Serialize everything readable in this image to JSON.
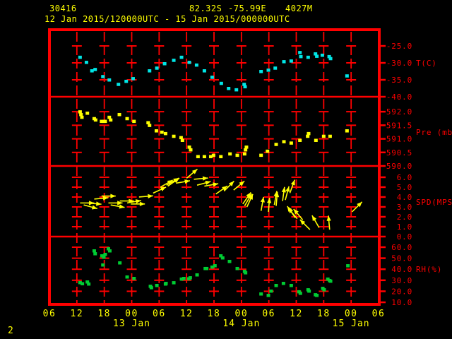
{
  "header": {
    "station_id": "30416",
    "latitude": "82.32S",
    "longitude": "-75.99E",
    "elevation": "4027M",
    "period": "12 Jan 2015/120000UTC - 15 Jan 2015/000000UTC"
  },
  "page_number": "2",
  "colors": {
    "background": "#000000",
    "frame": "#ff0000",
    "grid": "#ff0000",
    "axis_text": "#ff0000",
    "title_text": "#ffff00",
    "time_text": "#ffff00",
    "temperature": "#00e6e6",
    "pressure": "#ffff00",
    "wind": "#ffff00",
    "humidity": "#00cc33"
  },
  "x_axis": {
    "hours_span": 72,
    "tick_interval_hours": 6,
    "hour_labels": [
      "06",
      "12",
      "18",
      "00",
      "06",
      "12",
      "18",
      "00",
      "06",
      "12",
      "18",
      "00",
      "06"
    ],
    "date_labels": [
      {
        "label": "13 Jan",
        "hour": 18
      },
      {
        "label": "14 Jan",
        "hour": 42
      },
      {
        "label": "15 Jan",
        "hour": 66
      }
    ]
  },
  "chart_data": [
    {
      "type": "scatter",
      "name": "temperature",
      "axis_label": "T(C)",
      "axis_label_at": -30,
      "color": "#00e6e6",
      "ylim": [
        -40.0,
        -20.2
      ],
      "yticks": [
        {
          "value": -25.0,
          "label": "-25.0"
        },
        {
          "value": -30.0,
          "label": "-30.0"
        },
        {
          "value": -35.0,
          "label": "-35.0"
        },
        {
          "value": -40.0,
          "label": "-40.0"
        }
      ],
      "points": [
        [
          6.7,
          -28.3
        ],
        [
          8.1,
          -29.8
        ],
        [
          9.3,
          -32.3
        ],
        [
          10.0,
          -31.9
        ],
        [
          11.7,
          -34.0
        ],
        [
          13.1,
          -35.0
        ],
        [
          15.1,
          -36.3
        ],
        [
          16.8,
          -35.4
        ],
        [
          18.3,
          -34.6
        ],
        [
          21.9,
          -32.3
        ],
        [
          23.5,
          -31.5
        ],
        [
          25.2,
          -30.2
        ],
        [
          27.2,
          -29.2
        ],
        [
          28.9,
          -28.3
        ],
        [
          30.6,
          -29.8
        ],
        [
          32.2,
          -30.6
        ],
        [
          33.9,
          -32.3
        ],
        [
          35.6,
          -34.2
        ],
        [
          37.6,
          -36.0
        ],
        [
          39.2,
          -37.5
        ],
        [
          40.9,
          -37.9
        ],
        [
          42.6,
          -36.3
        ],
        [
          42.8,
          -37.0
        ],
        [
          46.3,
          -32.5
        ],
        [
          47.9,
          -32.1
        ],
        [
          49.4,
          -31.5
        ],
        [
          51.3,
          -29.6
        ],
        [
          52.9,
          -29.4
        ],
        [
          54.8,
          -26.9
        ],
        [
          55.0,
          -28.1
        ],
        [
          56.6,
          -28.3
        ],
        [
          58.2,
          -27.3
        ],
        [
          58.5,
          -28.0
        ],
        [
          59.7,
          -27.7
        ],
        [
          61.2,
          -28.1
        ],
        [
          61.5,
          -28.7
        ],
        [
          65.1,
          -33.8
        ]
      ]
    },
    {
      "type": "scatter",
      "name": "pressure",
      "axis_label": "Pre (mb)",
      "axis_label_at": 591.25,
      "color": "#ffff00",
      "ylim": [
        590.0,
        592.55
      ],
      "yticks": [
        {
          "value": 592.0,
          "label": "592.0"
        },
        {
          "value": 591.5,
          "label": "591.5"
        },
        {
          "value": 591.0,
          "label": "591.0"
        },
        {
          "value": 590.5,
          "label": "590.5"
        },
        {
          "value": 590.0,
          "label": "590.0"
        }
      ],
      "points": [
        [
          6.7,
          592.0
        ],
        [
          6.9,
          591.9
        ],
        [
          7.1,
          591.8
        ],
        [
          8.3,
          591.95
        ],
        [
          9.8,
          591.75
        ],
        [
          10.1,
          591.7
        ],
        [
          11.4,
          591.65
        ],
        [
          11.9,
          591.65
        ],
        [
          12.2,
          591.65
        ],
        [
          13.1,
          591.8
        ],
        [
          13.4,
          591.7
        ],
        [
          15.3,
          591.9
        ],
        [
          17.0,
          591.75
        ],
        [
          18.5,
          591.65
        ],
        [
          21.6,
          591.6
        ],
        [
          21.9,
          591.5
        ],
        [
          23.4,
          591.3
        ],
        [
          24.6,
          591.25
        ],
        [
          25.4,
          591.2
        ],
        [
          27.2,
          591.1
        ],
        [
          28.8,
          591.05
        ],
        [
          29.1,
          590.95
        ],
        [
          30.6,
          590.7
        ],
        [
          30.9,
          590.6
        ],
        [
          32.5,
          590.35
        ],
        [
          33.9,
          590.35
        ],
        [
          35.3,
          590.35
        ],
        [
          35.9,
          590.4
        ],
        [
          37.5,
          590.35
        ],
        [
          39.5,
          590.45
        ],
        [
          41.1,
          590.4
        ],
        [
          42.7,
          590.45
        ],
        [
          42.9,
          590.6
        ],
        [
          43.1,
          590.7
        ],
        [
          46.3,
          590.4
        ],
        [
          47.7,
          590.55
        ],
        [
          49.6,
          590.8
        ],
        [
          51.3,
          590.9
        ],
        [
          52.9,
          590.85
        ],
        [
          54.8,
          590.95
        ],
        [
          56.5,
          591.1
        ],
        [
          56.7,
          591.2
        ],
        [
          58.3,
          590.95
        ],
        [
          60.0,
          591.1
        ],
        [
          61.4,
          591.1
        ],
        [
          65.1,
          591.3
        ]
      ]
    },
    {
      "type": "wind_vector",
      "name": "wind_speed",
      "axis_label": "SPD(MPS)",
      "axis_label_at": 3.5,
      "color": "#ffff00",
      "ylim": [
        0.0,
        7.14
      ],
      "yticks": [
        {
          "value": 6.0,
          "label": "6.0"
        },
        {
          "value": 5.0,
          "label": "5.0"
        },
        {
          "value": 4.0,
          "label": "4.0"
        },
        {
          "value": 3.0,
          "label": "3.0"
        },
        {
          "value": 2.0,
          "label": "2.0"
        },
        {
          "value": 1.0,
          "label": "1.0"
        },
        {
          "value": 0.0,
          "label": "0.0"
        }
      ],
      "points": [
        [
          6.7,
          3.4,
          0
        ],
        [
          7.5,
          3.2,
          -15
        ],
        [
          8.3,
          3.4,
          -5
        ],
        [
          9.8,
          3.8,
          5
        ],
        [
          11.4,
          4.1,
          0
        ],
        [
          12.9,
          3.4,
          0
        ],
        [
          13.4,
          3.2,
          -10
        ],
        [
          15.4,
          3.6,
          0
        ],
        [
          17.0,
          3.4,
          10
        ],
        [
          17.8,
          3.3,
          0
        ],
        [
          19.6,
          4.0,
          5
        ],
        [
          22.7,
          4.4,
          25
        ],
        [
          24.3,
          5.0,
          30
        ],
        [
          25.6,
          5.2,
          30
        ],
        [
          25.9,
          5.1,
          35
        ],
        [
          27.7,
          5.4,
          10
        ],
        [
          30.0,
          5.9,
          40
        ],
        [
          31.6,
          5.8,
          5
        ],
        [
          32.3,
          5.2,
          15
        ],
        [
          33.9,
          5.1,
          10
        ],
        [
          36.4,
          4.3,
          35
        ],
        [
          38.2,
          4.6,
          45
        ],
        [
          40.3,
          4.7,
          40
        ],
        [
          42.3,
          3.3,
          55
        ],
        [
          42.7,
          3.1,
          60
        ],
        [
          43.2,
          3.0,
          65
        ],
        [
          46.3,
          2.6,
          80
        ],
        [
          47.9,
          2.5,
          85
        ],
        [
          49.2,
          3.2,
          80
        ],
        [
          49.6,
          3.1,
          85
        ],
        [
          51.0,
          3.6,
          82
        ],
        [
          51.6,
          3.7,
          75
        ],
        [
          52.6,
          4.4,
          70
        ],
        [
          53.8,
          1.9,
          125
        ],
        [
          54.2,
          1.8,
          130
        ],
        [
          55.4,
          1.7,
          130
        ],
        [
          57.0,
          0.7,
          135
        ],
        [
          59.0,
          0.9,
          120
        ],
        [
          61.3,
          0.7,
          95
        ],
        [
          66.2,
          2.5,
          45
        ]
      ]
    },
    {
      "type": "scatter",
      "name": "relative_humidity",
      "axis_label": "RH(%)",
      "axis_label_at": 40,
      "color": "#00cc33",
      "ylim": [
        8.1,
        69.6
      ],
      "yticks": [
        {
          "value": 60.0,
          "label": "60.0"
        },
        {
          "value": 50.0,
          "label": "50.0"
        },
        {
          "value": 40.0,
          "label": "40.0"
        },
        {
          "value": 30.0,
          "label": "30.0"
        },
        {
          "value": 20.0,
          "label": "20.0"
        },
        {
          "value": 10.0,
          "label": "10.0"
        }
      ],
      "points": [
        [
          6.7,
          28.0
        ],
        [
          7.2,
          27.0
        ],
        [
          8.3,
          28.6
        ],
        [
          8.6,
          26.7
        ],
        [
          9.8,
          56.8
        ],
        [
          10.0,
          54.2
        ],
        [
          11.5,
          52.3
        ],
        [
          11.7,
          44.0
        ],
        [
          11.9,
          51.0
        ],
        [
          12.2,
          53.6
        ],
        [
          12.9,
          58.7
        ],
        [
          13.2,
          56.8
        ],
        [
          15.4,
          45.9
        ],
        [
          17.0,
          33.1
        ],
        [
          18.5,
          31.8
        ],
        [
          22.1,
          24.7
        ],
        [
          22.3,
          23.4
        ],
        [
          23.5,
          25.4
        ],
        [
          25.4,
          26.7
        ],
        [
          25.5,
          27.3
        ],
        [
          27.2,
          27.9
        ],
        [
          28.9,
          31.2
        ],
        [
          29.4,
          31.8
        ],
        [
          30.5,
          31.5
        ],
        [
          30.8,
          32.4
        ],
        [
          32.3,
          35.0
        ],
        [
          34.1,
          40.8
        ],
        [
          34.4,
          40.8
        ],
        [
          35.6,
          42.1
        ],
        [
          36.2,
          43.3
        ],
        [
          37.5,
          52.3
        ],
        [
          37.9,
          50.4
        ],
        [
          39.4,
          47.2
        ],
        [
          41.1,
          40.8
        ],
        [
          42.7,
          38.2
        ],
        [
          42.9,
          36.9
        ],
        [
          46.3,
          17.7
        ],
        [
          47.9,
          16.4
        ],
        [
          48.5,
          20.3
        ],
        [
          49.6,
          25.4
        ],
        [
          51.2,
          27.3
        ],
        [
          52.9,
          25.4
        ],
        [
          54.6,
          19.7
        ],
        [
          54.9,
          18.3
        ],
        [
          56.6,
          21.5
        ],
        [
          56.8,
          20.3
        ],
        [
          58.2,
          17.0
        ],
        [
          58.5,
          16.4
        ],
        [
          59.8,
          22.8
        ],
        [
          60.1,
          21.5
        ],
        [
          60.9,
          31.2
        ],
        [
          61.3,
          29.9
        ],
        [
          61.5,
          29.3
        ],
        [
          65.3,
          43.3
        ]
      ]
    }
  ]
}
